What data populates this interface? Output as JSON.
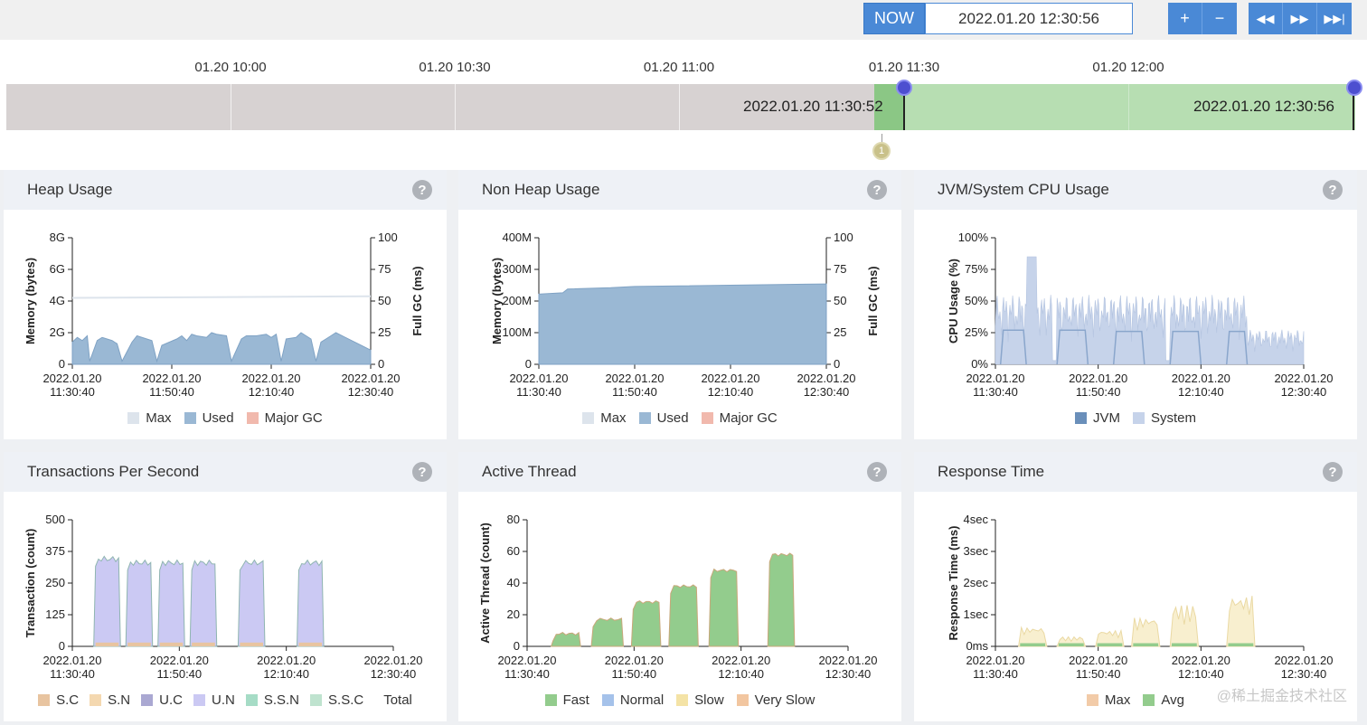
{
  "header": {
    "now_label": "NOW",
    "now_datetime": "2022.01.20 12:30:56",
    "buttons": {
      "zoom_in": "+",
      "zoom_out": "−",
      "rewind": "◀◀",
      "forward": "▶▶",
      "end": "▶▶|"
    }
  },
  "timeline": {
    "ticks": [
      "01.20 10:00",
      "01.20 10:30",
      "01.20 11:00",
      "01.20 11:30",
      "01.20 12:00"
    ],
    "range_start": "2022.01.20 11:30:52",
    "range_end": "2022.01.20 12:30:56",
    "marker_count": "1"
  },
  "panels": {
    "heap": {
      "title": "Heap Usage",
      "ylabel": "Memory (bytes)",
      "y2label": "Full GC (ms)",
      "yticks": [
        "0",
        "2G",
        "4G",
        "6G",
        "8G"
      ],
      "y2ticks": [
        "0",
        "25",
        "50",
        "75",
        "100"
      ],
      "legend": [
        "Max",
        "Used",
        "Major GC"
      ]
    },
    "nonheap": {
      "title": "Non Heap Usage",
      "ylabel": "Memory (bytes)",
      "y2label": "Full GC (ms)",
      "yticks": [
        "0",
        "100M",
        "200M",
        "300M",
        "400M"
      ],
      "y2ticks": [
        "0",
        "25",
        "50",
        "75",
        "100"
      ],
      "legend": [
        "Max",
        "Used",
        "Major GC"
      ]
    },
    "cpu": {
      "title": "JVM/System CPU Usage",
      "ylabel": "CPU Usage (%)",
      "yticks": [
        "0%",
        "25%",
        "50%",
        "75%",
        "100%"
      ],
      "legend": [
        "JVM",
        "System"
      ]
    },
    "tps": {
      "title": "Transactions Per Second",
      "ylabel": "Transaction (count)",
      "yticks": [
        "0",
        "125",
        "250",
        "375",
        "500"
      ],
      "legend": [
        "S.C",
        "S.N",
        "U.C",
        "U.N",
        "S.S.N",
        "S.S.C",
        "Total"
      ]
    },
    "active": {
      "title": "Active Thread",
      "ylabel": "Active Thread (count)",
      "yticks": [
        "0",
        "20",
        "40",
        "60",
        "80"
      ],
      "legend": [
        "Fast",
        "Normal",
        "Slow",
        "Very Slow"
      ]
    },
    "response": {
      "title": "Response Time",
      "ylabel": "Response Time (ms)",
      "yticks": [
        "0ms",
        "1sec",
        "2sec",
        "3sec",
        "4sec"
      ],
      "legend": [
        "Max",
        "Avg"
      ]
    }
  },
  "xticks_a": [
    "2022.01.20",
    "2022.01.20",
    "2022.01.20",
    "2022.01.20"
  ],
  "xticks_b": [
    "11:30:40",
    "11:50:40",
    "12:10:40",
    "12:30:40"
  ],
  "watermark": "@稀土掘金技术社区",
  "colors": {
    "accent": "#4a89d6",
    "used": "#9ab8d4",
    "max": "#dde4ec",
    "gc": "#f1b9ad",
    "jvm": "#6a8fba",
    "system": "#c6d3ea",
    "sc": "#e8c4a0",
    "sn": "#f4d8b0",
    "uc": "#aaa8d2",
    "un": "#cbc9f3",
    "ssn": "#a6dcc6",
    "ssc": "#bfe3cf",
    "fast": "#93cc8d",
    "normal": "#a5c2ea",
    "slow": "#f4e3a6",
    "veryslow": "#f2c6a0",
    "avg": "#93cc8d",
    "rmax": "#f2cba8"
  },
  "chart_data": [
    {
      "type": "area",
      "title": "Heap Usage",
      "xlabel": "",
      "ylabel": "Memory (bytes)",
      "y2label": "Full GC (ms)",
      "ylim": [
        0,
        8
      ],
      "y2lim": [
        0,
        100
      ],
      "x_range": [
        "11:30:40",
        "12:30:40"
      ],
      "series": [
        {
          "name": "Max",
          "x_minutes": [
            0,
            60
          ],
          "values_G": [
            4.2,
            4.3
          ]
        },
        {
          "name": "Used",
          "x_minutes": [
            0,
            1,
            2,
            3,
            3.5,
            5,
            6,
            8,
            9,
            10,
            12,
            13,
            16,
            17,
            18,
            21,
            22,
            23,
            24,
            25,
            27,
            28,
            29,
            31,
            32,
            34,
            35,
            37,
            39,
            40,
            41,
            42,
            43,
            45,
            46,
            48,
            49,
            50,
            51,
            52,
            53,
            60
          ],
          "values_G": [
            1.4,
            1.7,
            1.5,
            1.8,
            0.2,
            1.5,
            1.7,
            1.5,
            1.3,
            0.2,
            1.4,
            1.8,
            1.5,
            0.2,
            1.2,
            1.6,
            1.8,
            1.5,
            1.9,
            1.8,
            1.7,
            2.0,
            1.9,
            1.8,
            0.2,
            1.6,
            1.8,
            1.8,
            1.9,
            1.7,
            1.9,
            0.2,
            1.6,
            1.7,
            2.0,
            1.6,
            0.2,
            1.4,
            1.6,
            1.8,
            2.0,
            0.9
          ]
        },
        {
          "name": "Major GC",
          "x_minutes": [],
          "values": []
        }
      ]
    },
    {
      "type": "area",
      "title": "Non Heap Usage",
      "ylabel": "Memory (bytes)",
      "y2label": "Full GC (ms)",
      "ylim": [
        0,
        400
      ],
      "y2lim": [
        0,
        100
      ],
      "series": [
        {
          "name": "Used",
          "x_minutes": [
            0,
            5,
            6,
            15,
            20,
            60
          ],
          "values_M": [
            222,
            226,
            238,
            242,
            246,
            254
          ]
        }
      ]
    },
    {
      "type": "area",
      "title": "JVM/System CPU Usage",
      "ylabel": "CPU Usage (%)",
      "ylim": [
        0,
        100
      ],
      "series": [
        {
          "name": "JVM",
          "blocks": [
            [
              1,
              6,
              27
            ],
            [
              12,
              18,
              27
            ],
            [
              23,
              29,
              26
            ],
            [
              34,
              40,
              26
            ],
            [
              45,
              49,
              26
            ]
          ]
        },
        {
          "name": "System",
          "max": 90,
          "range": [
            0,
            60
          ]
        }
      ]
    },
    {
      "type": "area",
      "title": "Transactions Per Second",
      "ylabel": "Transaction (count)",
      "ylim": [
        0,
        500
      ],
      "series": [
        {
          "name": "U.N",
          "blocks": [
            [
              4,
              9,
              345
            ],
            [
              10,
              15,
              330
            ],
            [
              16,
              21,
              330
            ],
            [
              22,
              27,
              330
            ],
            [
              31,
              36,
              330
            ],
            [
              42,
              47,
              330
            ]
          ]
        },
        {
          "name": "S.C",
          "blocks": [
            [
              4,
              47,
              15
            ]
          ]
        }
      ]
    },
    {
      "type": "area",
      "title": "Active Thread",
      "ylabel": "Active Thread (count)",
      "ylim": [
        0,
        80
      ],
      "series": [
        {
          "name": "Fast",
          "blocks": [
            [
              4.5,
              10,
              8
            ],
            [
              12,
              18,
              17
            ],
            [
              19.5,
              25,
              28
            ],
            [
              26.5,
              32,
              38
            ],
            [
              34,
              39.5,
              48
            ],
            [
              45,
              50,
              58
            ]
          ]
        }
      ]
    },
    {
      "type": "area",
      "title": "Response Time",
      "ylabel": "Response Time (ms)",
      "ylim": [
        0,
        4
      ],
      "series": [
        {
          "name": "Max",
          "peaks_sec": [
            0.6,
            0.3,
            0.5,
            0.9,
            1.3,
            1.6
          ]
        },
        {
          "name": "Avg",
          "blocks_sec": [
            [
              0,
              60,
              0.1
            ]
          ]
        }
      ]
    }
  ]
}
